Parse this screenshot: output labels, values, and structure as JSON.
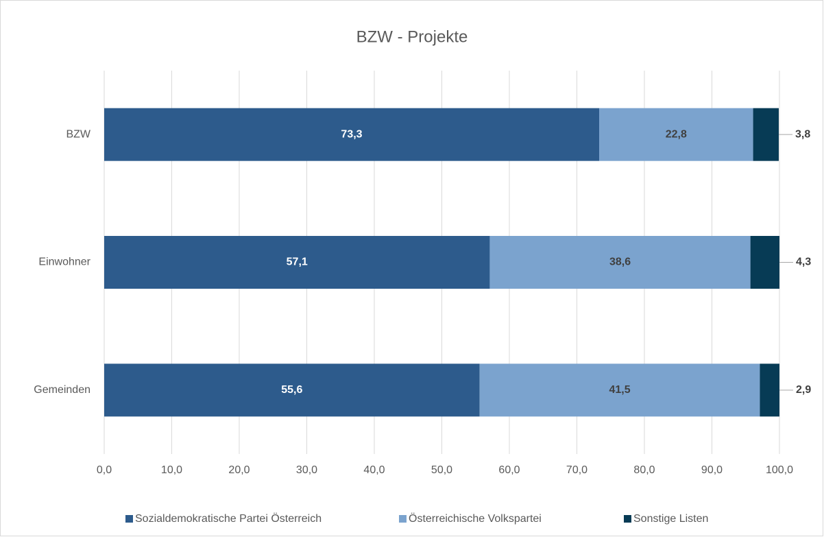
{
  "chart_data": {
    "type": "stacked-horizontal-bar",
    "title": "BZW - Projekte",
    "categories": [
      "BZW",
      "Einwohner",
      "Gemeinden"
    ],
    "series": [
      {
        "name": "Sozialdemokratische Partei Österreich",
        "color": "#2d5b8c",
        "values": [
          73.3,
          57.1,
          55.6
        ],
        "value_labels": [
          "73,3",
          "57,1",
          "55,6"
        ]
      },
      {
        "name": "Österreichische Volkspartei",
        "color": "#7ba3ce",
        "values": [
          22.8,
          38.6,
          41.5
        ],
        "value_labels": [
          "22,8",
          "38,6",
          "41,5"
        ]
      },
      {
        "name": "Sonstige Listen",
        "color": "#073b55",
        "values": [
          3.8,
          4.3,
          2.9
        ],
        "value_labels": [
          "3,8",
          "4,3",
          "2,9"
        ]
      }
    ],
    "xlim": [
      0,
      100
    ],
    "xticks": [
      {
        "value": 0,
        "label": "0,0"
      },
      {
        "value": 10,
        "label": "10,0"
      },
      {
        "value": 20,
        "label": "20,0"
      },
      {
        "value": 30,
        "label": "30,0"
      },
      {
        "value": 40,
        "label": "40,0"
      },
      {
        "value": 50,
        "label": "50,0"
      },
      {
        "value": 60,
        "label": "60,0"
      },
      {
        "value": 70,
        "label": "70,0"
      },
      {
        "value": 80,
        "label": "80,0"
      },
      {
        "value": 90,
        "label": "90,0"
      },
      {
        "value": 100,
        "label": "100,0"
      }
    ],
    "grid": true,
    "legend": "bottom"
  }
}
